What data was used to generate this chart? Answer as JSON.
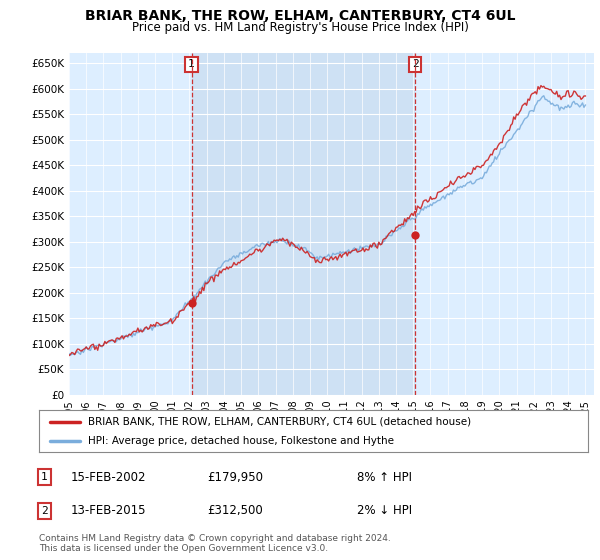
{
  "title": "BRIAR BANK, THE ROW, ELHAM, CANTERBURY, CT4 6UL",
  "subtitle": "Price paid vs. HM Land Registry's House Price Index (HPI)",
  "ylim": [
    0,
    670000
  ],
  "yticks": [
    0,
    50000,
    100000,
    150000,
    200000,
    250000,
    300000,
    350000,
    400000,
    450000,
    500000,
    550000,
    600000,
    650000
  ],
  "ytick_labels": [
    "£0",
    "£50K",
    "£100K",
    "£150K",
    "£200K",
    "£250K",
    "£300K",
    "£350K",
    "£400K",
    "£450K",
    "£500K",
    "£550K",
    "£600K",
    "£650K"
  ],
  "hpi_color": "#7aaddc",
  "price_color": "#cc2222",
  "marker_color": "#cc2222",
  "background_color": "#ddeeff",
  "shade_color": "#c8dcf0",
  "sale1_x": 2002.12,
  "sale1_y": 179950,
  "sale1_label": "1",
  "sale1_date": "15-FEB-2002",
  "sale1_price": "£179,950",
  "sale1_hpi": "8% ↑ HPI",
  "sale2_x": 2015.12,
  "sale2_y": 312500,
  "sale2_label": "2",
  "sale2_date": "13-FEB-2015",
  "sale2_price": "£312,500",
  "sale2_hpi": "2% ↓ HPI",
  "legend_label1": "BRIAR BANK, THE ROW, ELHAM, CANTERBURY, CT4 6UL (detached house)",
  "legend_label2": "HPI: Average price, detached house, Folkestone and Hythe",
  "footnote": "Contains HM Land Registry data © Crown copyright and database right 2024.\nThis data is licensed under the Open Government Licence v3.0.",
  "vline1_x": 2002.12,
  "vline2_x": 2015.12,
  "xmin": 1995,
  "xmax": 2025.5
}
